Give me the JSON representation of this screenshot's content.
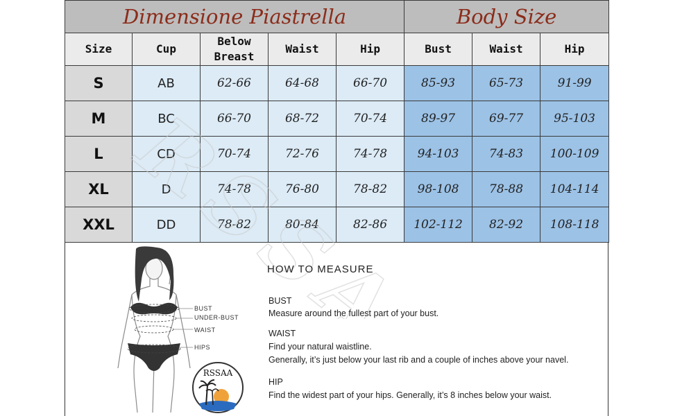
{
  "banner": {
    "left": "Dimensione Piastrella",
    "right": "Body Size"
  },
  "headers": [
    "Size",
    "Cup",
    "Below Breast",
    "Waist",
    "Hip",
    "Bust",
    "Waist",
    "Hip"
  ],
  "rows": [
    {
      "size": "S",
      "cup": "AB",
      "below_breast": "62-66",
      "waist": "64-68",
      "hip": "66-70",
      "body_bust": "85-93",
      "body_waist": "65-73",
      "body_hip": "91-99"
    },
    {
      "size": "M",
      "cup": "BC",
      "below_breast": "66-70",
      "waist": "68-72",
      "hip": "70-74",
      "body_bust": "89-97",
      "body_waist": "69-77",
      "body_hip": "95-103"
    },
    {
      "size": "L",
      "cup": "CD",
      "below_breast": "70-74",
      "waist": "72-76",
      "hip": "74-78",
      "body_bust": "94-103",
      "body_waist": "74-83",
      "body_hip": "100-109"
    },
    {
      "size": "XL",
      "cup": "D",
      "below_breast": "74-78",
      "waist": "76-80",
      "hip": "78-82",
      "body_bust": "98-108",
      "body_waist": "78-88",
      "body_hip": "104-114"
    },
    {
      "size": "XXL",
      "cup": "DD",
      "below_breast": "78-82",
      "waist": "80-84",
      "hip": "82-86",
      "body_bust": "102-112",
      "body_waist": "82-92",
      "body_hip": "108-118"
    }
  ],
  "figure_labels": {
    "bust": "BUST",
    "under_bust": "UNDER-BUST",
    "waist": "WAIST",
    "hips": "HIPS"
  },
  "how_to": {
    "title": "HOW TO MEASURE",
    "bust_heading": "BUST",
    "bust_text": "Measure around the fullest part of your bust.",
    "waist_heading": "WAIST",
    "waist_text_1": "Find your natural waistline.",
    "waist_text_2": "Generally, it’s just below your last rib and a couple of inches above your navel.",
    "hip_heading": "HIP",
    "hip_text": "Find the widest part of your hips. Generally, it’s 8 inches below your waist."
  },
  "logo_text": "RSSAA",
  "watermark_text": "RSSAA",
  "colors": {
    "banner_bg": "#bdbdbd",
    "banner_text": "#8b2c1a",
    "light_blue": "#dcebf6",
    "dark_blue": "#9cc2e6",
    "size_col": "#d9d9d9"
  }
}
